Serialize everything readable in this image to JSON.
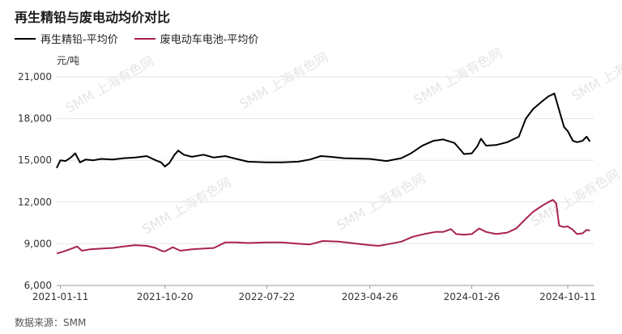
{
  "title": "再生精铅与废电动均价对比",
  "unit": "元/吨",
  "source": "数据来源：SMM",
  "watermark": "SMM 上海有色网",
  "colors": {
    "series1": "#000000",
    "series2": "#a8224f",
    "grid": "#e5e5e5",
    "axis": "#999999"
  },
  "chart_data": {
    "type": "line",
    "ylabel": "元/吨",
    "ylim": [
      6000,
      21000
    ],
    "yticks": [
      "6,000",
      "9,000",
      "12,000",
      "15,000",
      "18,000",
      "21,000"
    ],
    "ytick_values": [
      6000,
      9000,
      12000,
      15000,
      18000,
      21000
    ],
    "xlim": [
      "2021-01-01",
      "2024-12-20"
    ],
    "xticks": [
      "2021-01-11",
      "2021-10-20",
      "2022-07-22",
      "2023-04-26",
      "2024-01-26",
      "2024-10-11"
    ],
    "grid": "horizontal",
    "legend": "top-left",
    "series": [
      {
        "name": "再生精铅-平均价",
        "points": [
          [
            "2021-01-01",
            14450
          ],
          [
            "2021-01-11",
            15000
          ],
          [
            "2021-01-25",
            14950
          ],
          [
            "2021-02-08",
            15200
          ],
          [
            "2021-02-20",
            15500
          ],
          [
            "2021-03-05",
            14850
          ],
          [
            "2021-03-20",
            15050
          ],
          [
            "2021-04-10",
            15000
          ],
          [
            "2021-05-01",
            15100
          ],
          [
            "2021-06-01",
            15050
          ],
          [
            "2021-07-01",
            15150
          ],
          [
            "2021-08-01",
            15200
          ],
          [
            "2021-09-01",
            15300
          ],
          [
            "2021-09-25",
            15000
          ],
          [
            "2021-10-10",
            14850
          ],
          [
            "2021-10-20",
            14550
          ],
          [
            "2021-11-01",
            14800
          ],
          [
            "2021-11-15",
            15400
          ],
          [
            "2021-11-25",
            15700
          ],
          [
            "2021-12-10",
            15400
          ],
          [
            "2022-01-01",
            15250
          ],
          [
            "2022-02-01",
            15400
          ],
          [
            "2022-03-01",
            15200
          ],
          [
            "2022-04-01",
            15300
          ],
          [
            "2022-05-01",
            15100
          ],
          [
            "2022-06-01",
            14900
          ],
          [
            "2022-07-22",
            14850
          ],
          [
            "2022-09-01",
            14850
          ],
          [
            "2022-10-15",
            14900
          ],
          [
            "2022-11-15",
            15050
          ],
          [
            "2022-12-15",
            15300
          ],
          [
            "2023-01-10",
            15250
          ],
          [
            "2023-02-15",
            15150
          ],
          [
            "2023-04-26",
            15100
          ],
          [
            "2023-06-10",
            14950
          ],
          [
            "2023-07-20",
            15150
          ],
          [
            "2023-08-15",
            15500
          ],
          [
            "2023-09-15",
            16050
          ],
          [
            "2023-10-15",
            16400
          ],
          [
            "2023-11-10",
            16500
          ],
          [
            "2023-12-10",
            16250
          ],
          [
            "2023-12-25",
            15800
          ],
          [
            "2024-01-05",
            15450
          ],
          [
            "2024-01-26",
            15500
          ],
          [
            "2024-02-10",
            16000
          ],
          [
            "2024-02-20",
            16550
          ],
          [
            "2024-03-05",
            16050
          ],
          [
            "2024-04-01",
            16100
          ],
          [
            "2024-05-01",
            16300
          ],
          [
            "2024-06-01",
            16700
          ],
          [
            "2024-06-20",
            18000
          ],
          [
            "2024-07-10",
            18700
          ],
          [
            "2024-08-01",
            19200
          ],
          [
            "2024-08-20",
            19600
          ],
          [
            "2024-09-05",
            19800
          ],
          [
            "2024-09-20",
            18400
          ],
          [
            "2024-10-01",
            17400
          ],
          [
            "2024-10-11",
            17100
          ],
          [
            "2024-10-25",
            16400
          ],
          [
            "2024-11-05",
            16300
          ],
          [
            "2024-11-20",
            16400
          ],
          [
            "2024-12-01",
            16700
          ],
          [
            "2024-12-10",
            16350
          ]
        ]
      },
      {
        "name": "废电动车电池-平均价",
        "points": [
          [
            "2021-01-01",
            8300
          ],
          [
            "2021-01-20",
            8450
          ],
          [
            "2021-02-10",
            8650
          ],
          [
            "2021-02-25",
            8800
          ],
          [
            "2021-03-10",
            8500
          ],
          [
            "2021-04-01",
            8600
          ],
          [
            "2021-05-01",
            8650
          ],
          [
            "2021-06-01",
            8700
          ],
          [
            "2021-07-01",
            8800
          ],
          [
            "2021-08-01",
            8900
          ],
          [
            "2021-09-01",
            8850
          ],
          [
            "2021-09-25",
            8700
          ],
          [
            "2021-10-10",
            8500
          ],
          [
            "2021-10-20",
            8450
          ],
          [
            "2021-11-10",
            8750
          ],
          [
            "2021-12-01",
            8500
          ],
          [
            "2022-01-01",
            8600
          ],
          [
            "2022-02-01",
            8650
          ],
          [
            "2022-03-01",
            8700
          ],
          [
            "2022-04-01",
            9100
          ],
          [
            "2022-05-01",
            9100
          ],
          [
            "2022-06-01",
            9050
          ],
          [
            "2022-07-22",
            9100
          ],
          [
            "2022-09-01",
            9100
          ],
          [
            "2022-10-15",
            9000
          ],
          [
            "2022-11-15",
            8950
          ],
          [
            "2022-12-20",
            9200
          ],
          [
            "2023-02-01",
            9150
          ],
          [
            "2023-04-26",
            8900
          ],
          [
            "2023-05-20",
            8850
          ],
          [
            "2023-06-10",
            8950
          ],
          [
            "2023-07-20",
            9150
          ],
          [
            "2023-08-20",
            9500
          ],
          [
            "2023-09-20",
            9700
          ],
          [
            "2023-10-20",
            9850
          ],
          [
            "2023-11-10",
            9850
          ],
          [
            "2023-12-01",
            10050
          ],
          [
            "2023-12-15",
            9700
          ],
          [
            "2024-01-05",
            9650
          ],
          [
            "2024-01-26",
            9700
          ],
          [
            "2024-02-15",
            10100
          ],
          [
            "2024-03-05",
            9850
          ],
          [
            "2024-04-01",
            9700
          ],
          [
            "2024-05-01",
            9800
          ],
          [
            "2024-05-25",
            10100
          ],
          [
            "2024-06-20",
            10800
          ],
          [
            "2024-07-10",
            11300
          ],
          [
            "2024-08-01",
            11700
          ],
          [
            "2024-08-20",
            12000
          ],
          [
            "2024-09-01",
            12150
          ],
          [
            "2024-09-10",
            11900
          ],
          [
            "2024-09-18",
            10300
          ],
          [
            "2024-10-01",
            10200
          ],
          [
            "2024-10-11",
            10250
          ],
          [
            "2024-10-25",
            10000
          ],
          [
            "2024-11-05",
            9700
          ],
          [
            "2024-11-20",
            9750
          ],
          [
            "2024-12-01",
            10000
          ],
          [
            "2024-12-10",
            9950
          ]
        ]
      }
    ]
  }
}
